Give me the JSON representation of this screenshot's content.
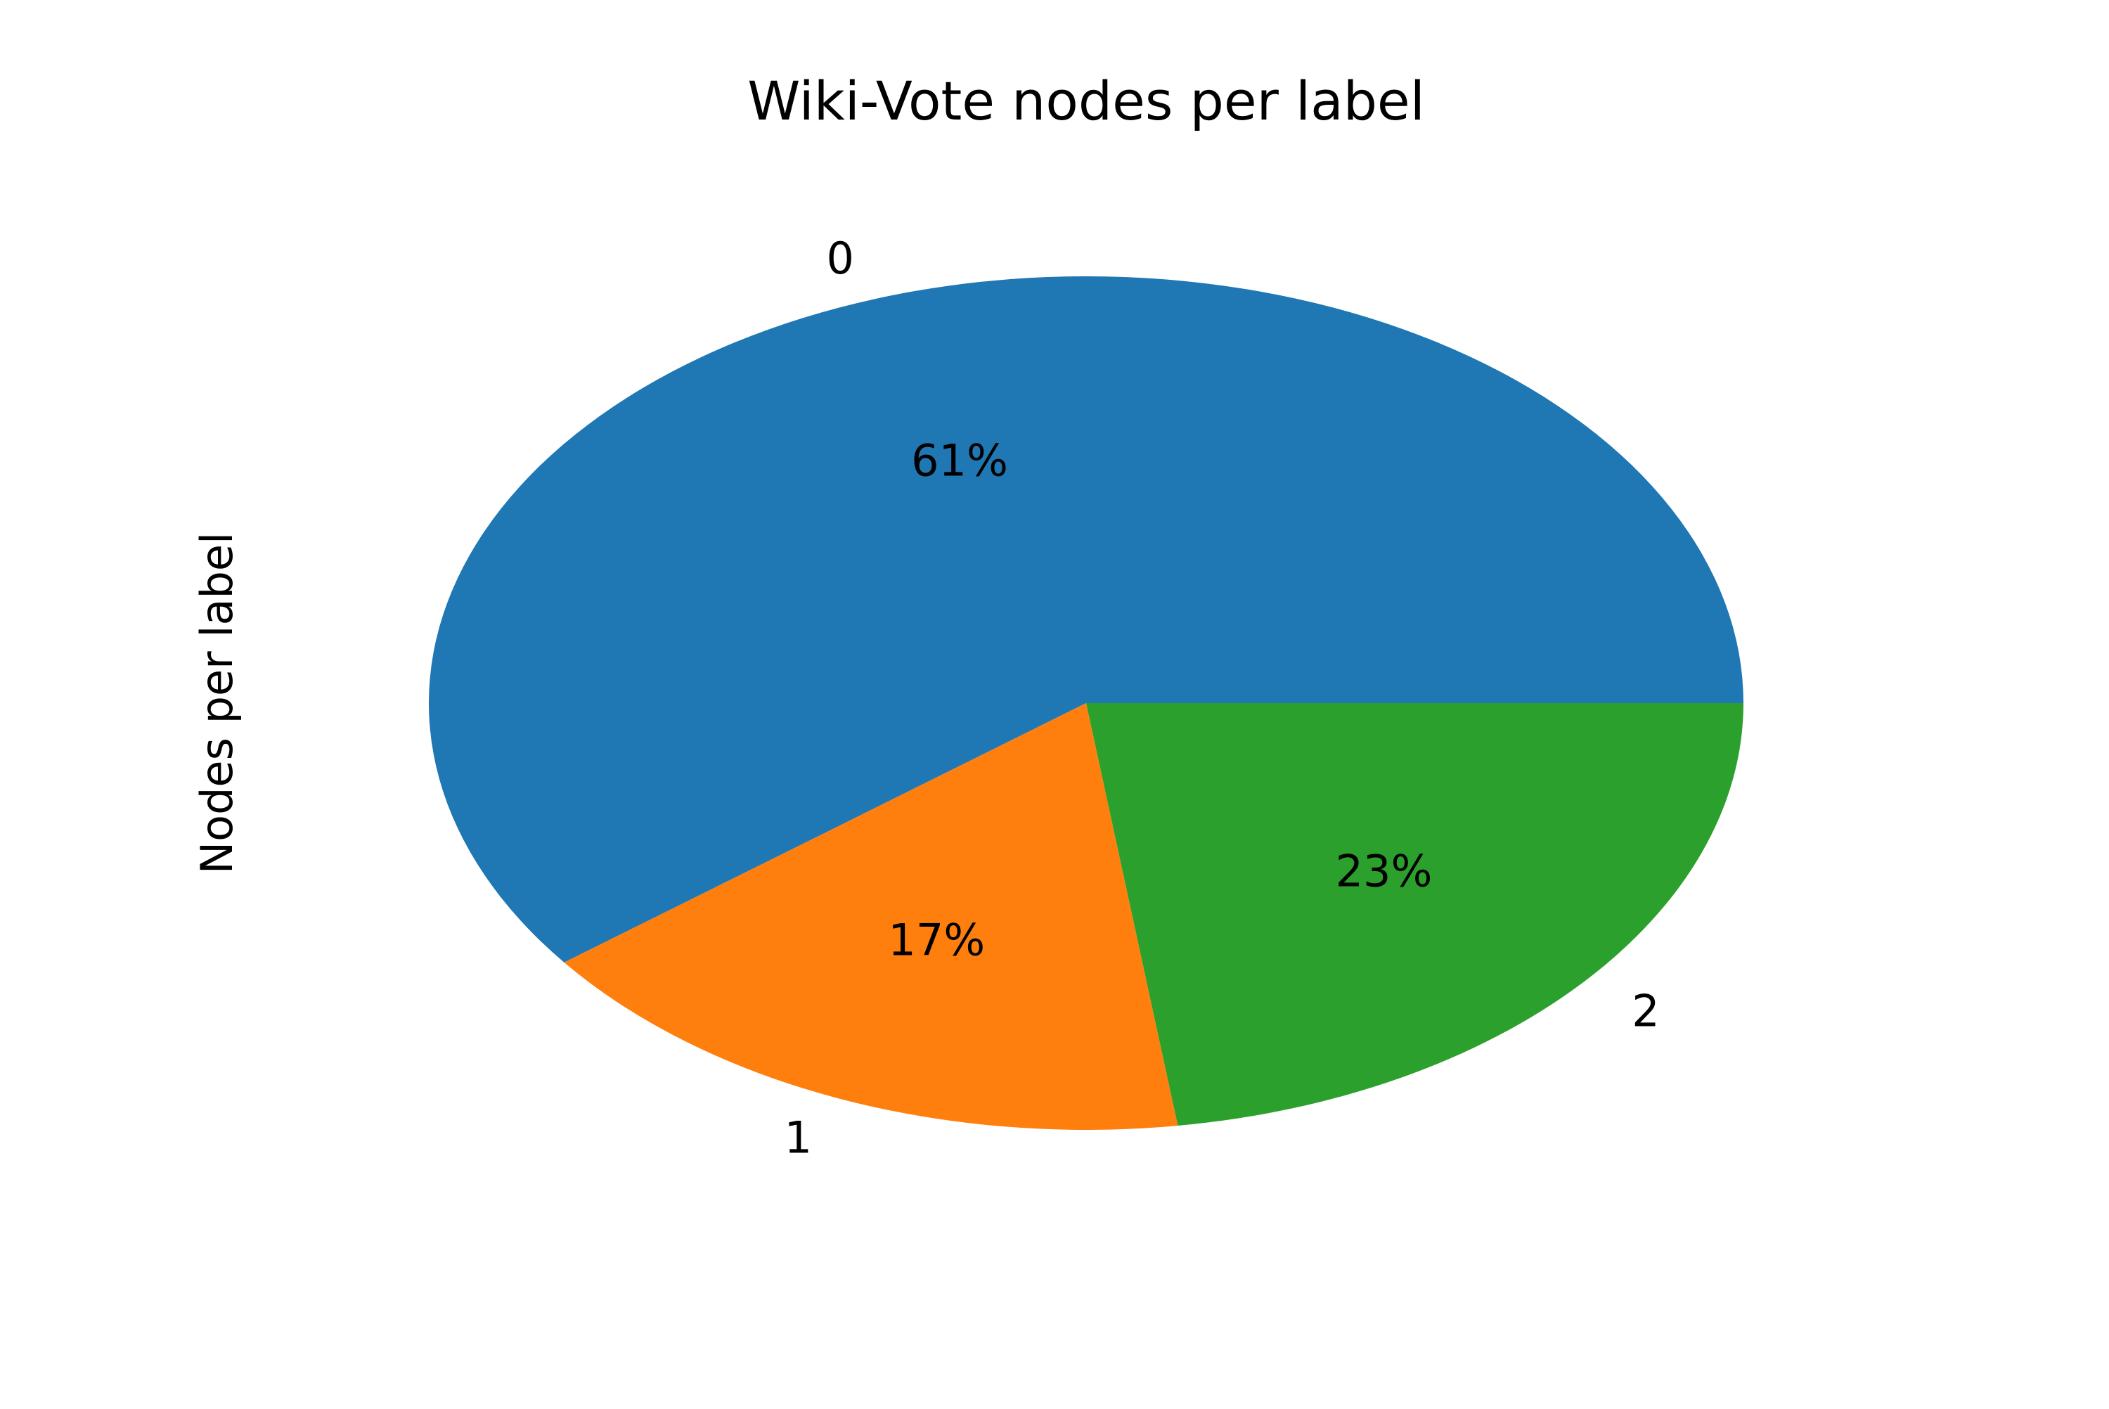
{
  "chart_data": {
    "type": "pie",
    "title": "Wiki-Vote nodes per label",
    "ylabel": "Nodes per label",
    "categories": [
      "0",
      "1",
      "2"
    ],
    "values": [
      61,
      17,
      23
    ],
    "value_labels": [
      "61%",
      "17%",
      "23%"
    ],
    "colors": [
      "#1f77b4",
      "#ff7f0e",
      "#2ca02c"
    ],
    "start_angle": 0,
    "direction": "counterclockwise",
    "legend": "none",
    "grid": false
  }
}
